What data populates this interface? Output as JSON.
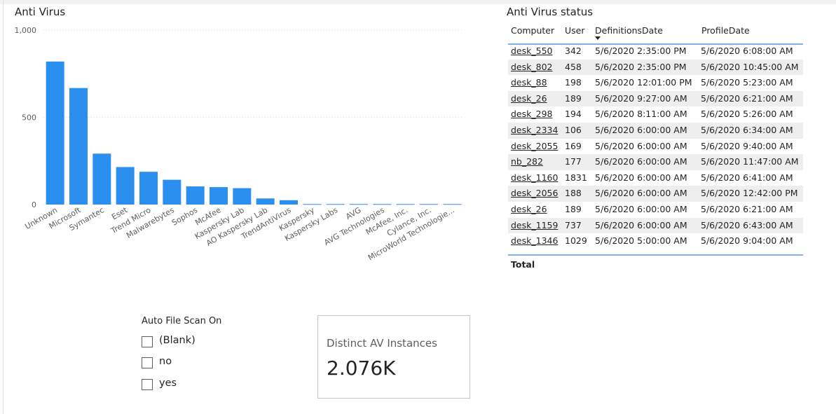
{
  "chart": {
    "title": "Anti Virus"
  },
  "chart_data": {
    "type": "bar",
    "title": "Anti Virus",
    "xlabel": "",
    "ylabel": "",
    "ylim": [
      0,
      1000
    ],
    "yticks": [
      "0",
      "500",
      "1,000"
    ],
    "grid": true,
    "color": "#2b8ff0",
    "categories": [
      "Unknown",
      "Microsoft",
      "Symantec",
      "Eset",
      "Trend Micro",
      "Malwarebytes",
      "Sophos",
      "McAfee",
      "Kaspersky Lab",
      "AO Kaspersky Lab",
      "TrendAntiVirus",
      "Kaspersky",
      "Kaspersky Labs",
      "AVG",
      "AVG Technologies",
      "McAfee, Inc.",
      "Cylance, Inc.",
      "MicroWorld Technologie..."
    ],
    "values": [
      820,
      668,
      292,
      215,
      188,
      142,
      104,
      100,
      94,
      35,
      25,
      3,
      3,
      3,
      3,
      3,
      3,
      3
    ]
  },
  "table": {
    "title": "Anti Virus status",
    "columns": [
      "Computer",
      "User",
      "DefinitionsDate",
      "ProfileDate"
    ],
    "rows": [
      [
        "desk_550",
        "342",
        "5/6/2020 2:35:00 PM",
        "5/6/2020 6:08:00 AM"
      ],
      [
        "desk_802",
        "458",
        "5/6/2020 2:35:00 PM",
        "5/6/2020 10:45:00 AM"
      ],
      [
        "desk_88",
        "198",
        "5/6/2020 12:01:00 PM",
        "5/6/2020 5:23:00 AM"
      ],
      [
        "desk_26",
        "189",
        "5/6/2020 9:27:00 AM",
        "5/6/2020 6:21:00 AM"
      ],
      [
        "desk_298",
        "194",
        "5/6/2020 8:11:00 AM",
        "5/6/2020 5:26:00 AM"
      ],
      [
        "desk_2334",
        "106",
        "5/6/2020 6:00:00 AM",
        "5/6/2020 6:34:00 AM"
      ],
      [
        "desk_2055",
        "169",
        "5/6/2020 6:00:00 AM",
        "5/6/2020 9:40:00 AM"
      ],
      [
        "nb_282",
        "177",
        "5/6/2020 6:00:00 AM",
        "5/6/2020 11:47:00 AM"
      ],
      [
        "desk_1160",
        "1831",
        "5/6/2020 6:00:00 AM",
        "5/6/2020 6:41:00 AM"
      ],
      [
        "desk_2056",
        "188",
        "5/6/2020 6:00:00 AM",
        "5/6/2020 12:42:00 PM"
      ],
      [
        "desk_26",
        "189",
        "5/6/2020 6:00:00 AM",
        "5/6/2020 6:21:00 AM"
      ],
      [
        "desk_1159",
        "737",
        "5/6/2020 6:00:00 AM",
        "5/6/2020 6:43:00 AM"
      ],
      [
        "desk_1346",
        "1029",
        "5/6/2020 5:00:00 AM",
        "5/6/2020 9:04:00 AM"
      ]
    ],
    "total_label": "Total"
  },
  "slicer": {
    "title": "Auto File Scan On",
    "options": [
      "(Blank)",
      "no",
      "yes"
    ]
  },
  "card": {
    "label": "Distinct AV Instances",
    "value": "2.076K"
  }
}
